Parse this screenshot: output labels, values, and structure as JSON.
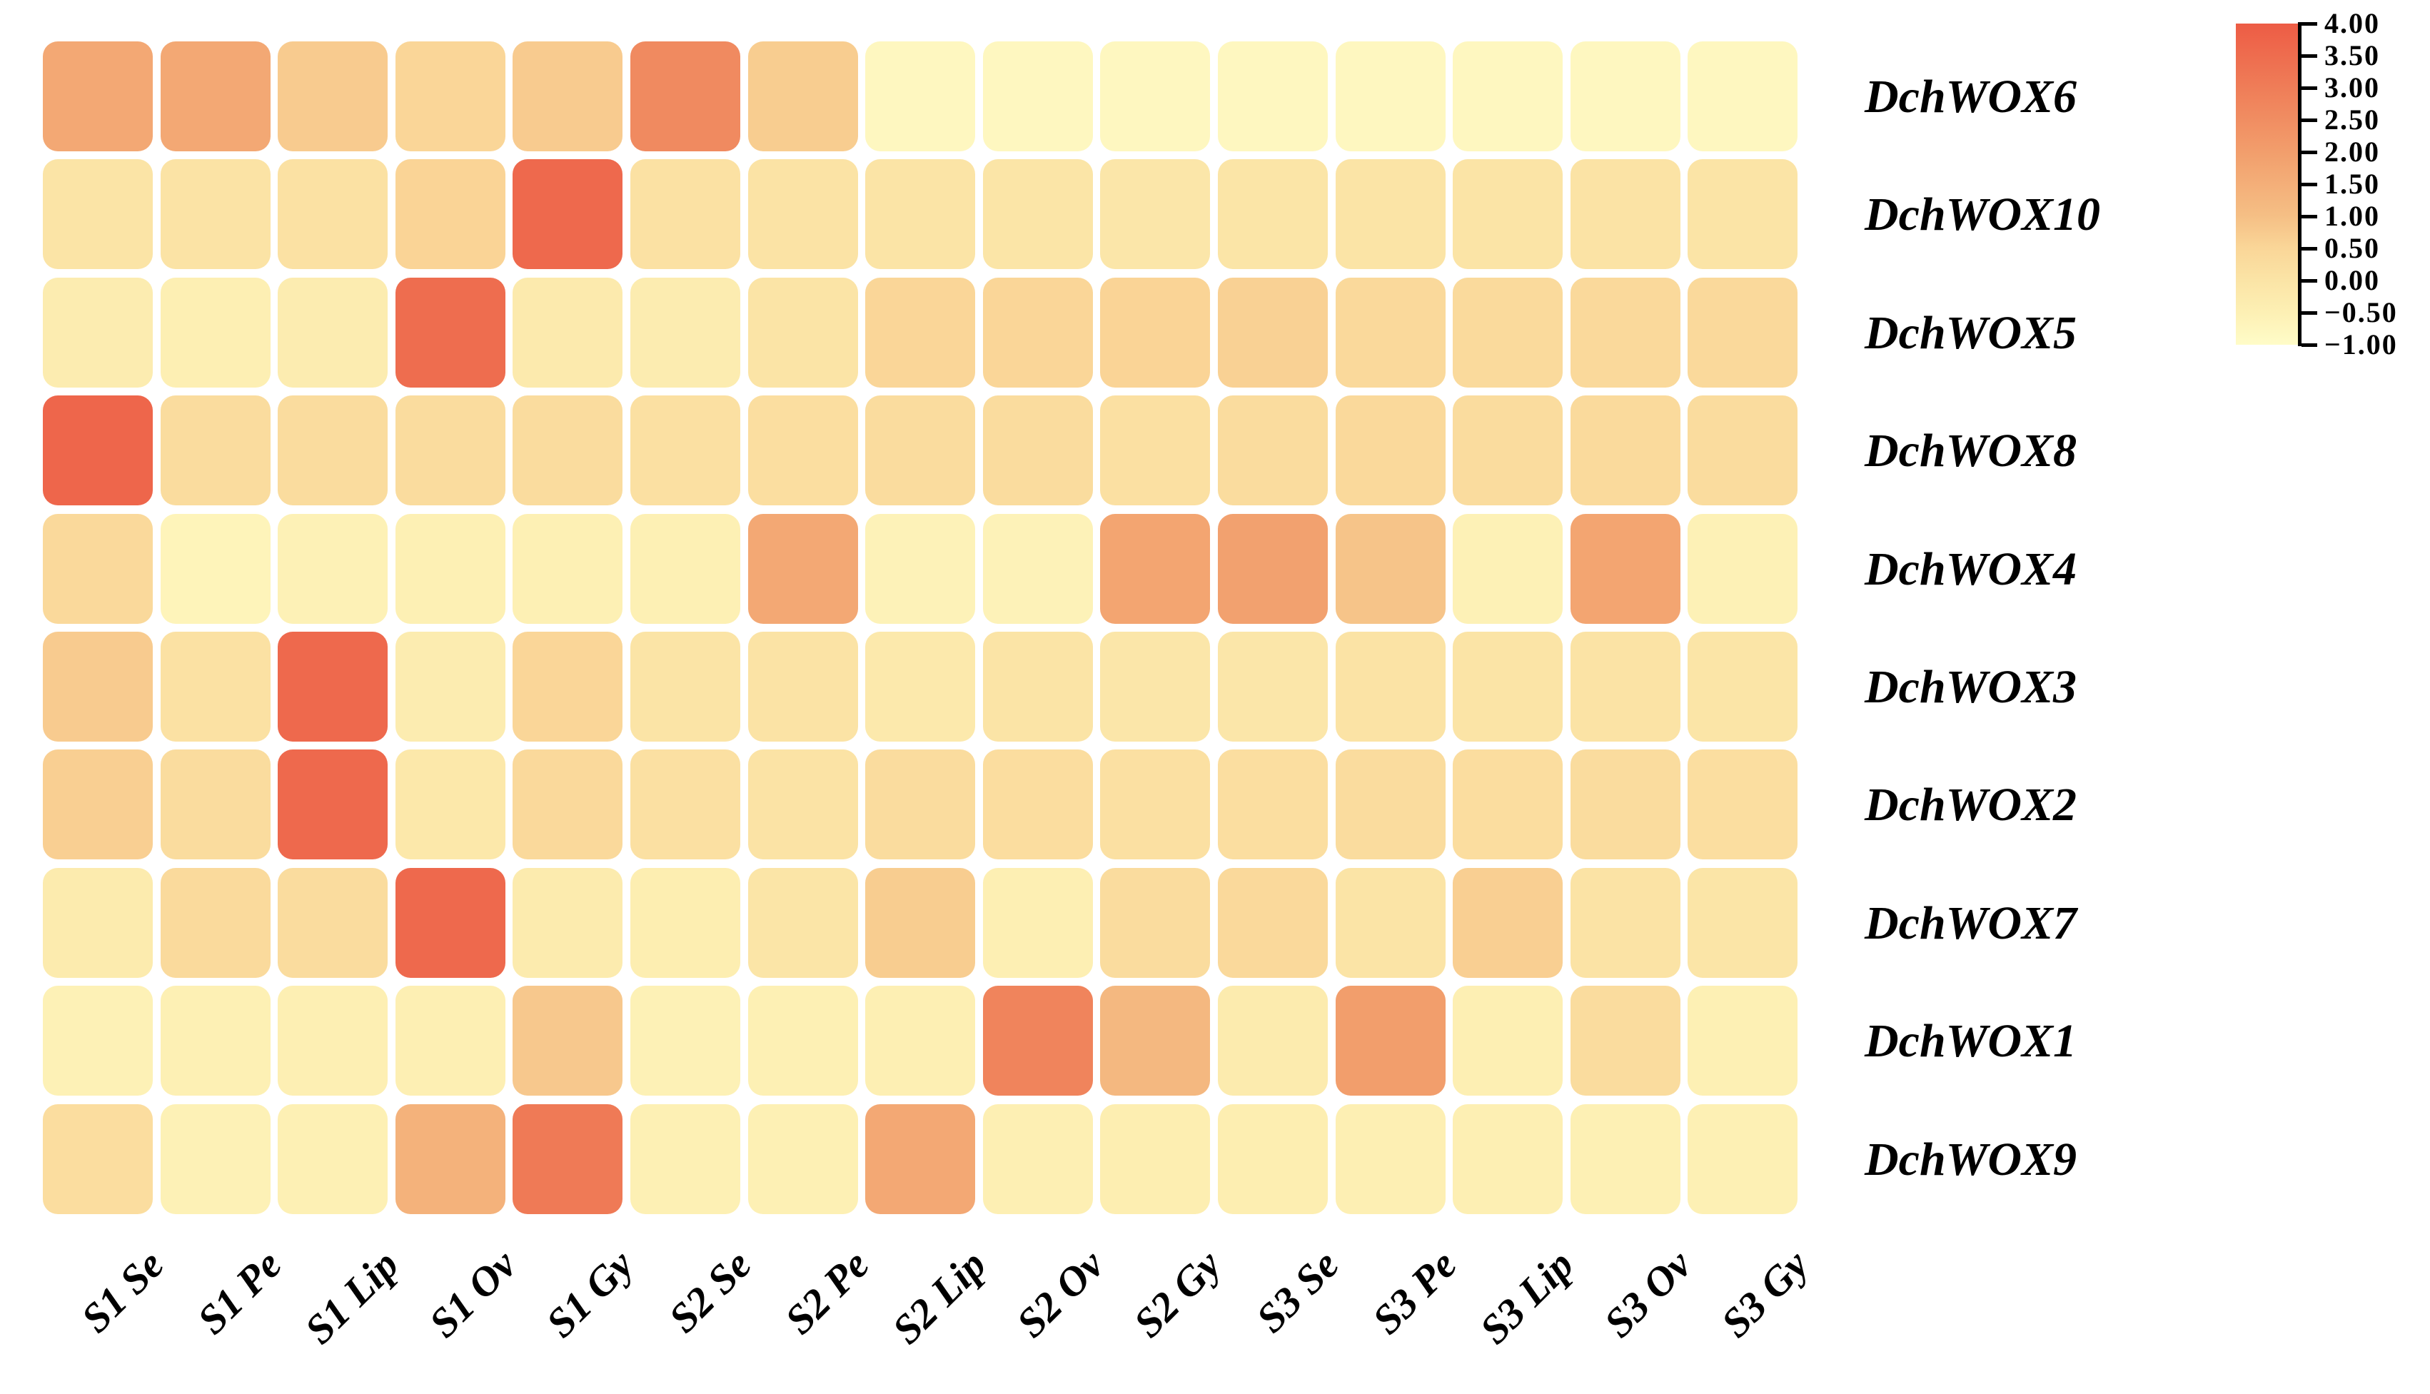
{
  "chart_data": {
    "type": "heatmap",
    "title": "",
    "rows": [
      "DchWOX6",
      "DchWOX10",
      "DchWOX5",
      "DchWOX8",
      "DchWOX4",
      "DchWOX3",
      "DchWOX2",
      "DchWOX7",
      "DchWOX1",
      "DchWOX9"
    ],
    "columns": [
      "S1 Se",
      "S1 Pe",
      "S1 Lip",
      "S1 Ov",
      "S1 Gy",
      "S2 Se",
      "S2 Pe",
      "S2 Lip",
      "S2 Ov",
      "S2 Gy",
      "S3 Se",
      "S3 Pe",
      "S3 Lip",
      "S3 Ov",
      "S3 Gy"
    ],
    "values": [
      [
        1.7,
        1.7,
        0.75,
        0.5,
        0.75,
        2.6,
        0.7,
        -0.8,
        -0.8,
        -0.8,
        -0.8,
        -0.8,
        -0.8,
        -0.8,
        -0.8
      ],
      [
        0.0,
        0.05,
        0.1,
        0.55,
        3.6,
        0.1,
        0.05,
        0.0,
        -0.05,
        -0.1,
        -0.05,
        0.0,
        0.0,
        0.05,
        0.0
      ],
      [
        -0.35,
        -0.45,
        -0.35,
        3.5,
        -0.25,
        -0.35,
        0.0,
        0.5,
        0.5,
        0.55,
        0.6,
        0.4,
        0.35,
        0.4,
        0.4
      ],
      [
        3.7,
        0.3,
        0.3,
        0.3,
        0.3,
        0.15,
        0.2,
        0.3,
        0.3,
        0.15,
        0.3,
        0.4,
        0.3,
        0.35,
        0.3
      ],
      [
        0.4,
        -0.65,
        -0.55,
        -0.5,
        -0.5,
        -0.5,
        1.7,
        -0.6,
        -0.6,
        1.8,
        1.9,
        0.9,
        -0.55,
        1.8,
        -0.55
      ],
      [
        0.75,
        0.1,
        3.6,
        -0.35,
        0.5,
        0.0,
        0.05,
        -0.2,
        0.0,
        -0.1,
        -0.1,
        0.05,
        0.0,
        0.05,
        -0.05
      ],
      [
        0.65,
        0.3,
        3.6,
        -0.15,
        0.4,
        0.15,
        0.05,
        0.3,
        0.25,
        0.15,
        0.2,
        0.3,
        0.25,
        0.3,
        0.2
      ],
      [
        -0.3,
        0.35,
        0.3,
        3.6,
        -0.3,
        -0.4,
        -0.05,
        0.7,
        -0.45,
        0.3,
        0.4,
        0.0,
        0.65,
        0.05,
        -0.05
      ],
      [
        -0.55,
        -0.5,
        -0.45,
        -0.45,
        0.8,
        -0.55,
        -0.5,
        -0.45,
        2.8,
        1.2,
        -0.3,
        2.0,
        -0.45,
        0.3,
        -0.5
      ],
      [
        0.25,
        -0.55,
        -0.5,
        1.4,
        3.1,
        -0.5,
        -0.5,
        1.7,
        -0.45,
        -0.4,
        -0.4,
        -0.45,
        -0.45,
        -0.5,
        -0.5
      ]
    ],
    "value_range": [
      -1.0,
      4.0
    ],
    "legend_position": "top-right",
    "grid": false,
    "colorbar": {
      "tick_labels": [
        "4.00",
        "3.50",
        "3.00",
        "2.50",
        "2.00",
        "1.50",
        "1.00",
        "0.50",
        "0.00",
        "−0.50",
        "−1.00"
      ],
      "tick_values": [
        4.0,
        3.5,
        3.0,
        2.5,
        2.0,
        1.5,
        1.0,
        0.5,
        0.0,
        -0.5,
        -1.0
      ],
      "gradient_stops": [
        {
          "value": 4.0,
          "color": "#ed5c45"
        },
        {
          "value": 3.0,
          "color": "#ef7d58"
        },
        {
          "value": 2.0,
          "color": "#f29e6c"
        },
        {
          "value": 1.0,
          "color": "#f5bf85"
        },
        {
          "value": 0.5,
          "color": "#fad698"
        },
        {
          "value": 0.0,
          "color": "#fbe4a6"
        },
        {
          "value": -0.5,
          "color": "#fdf0b4"
        },
        {
          "value": -1.0,
          "color": "#fffcc8"
        }
      ]
    },
    "colors": {
      "background": "#ffffff",
      "cell_gap": "#ffffff",
      "label_text": "#000000",
      "max_color": "#ed5c45",
      "min_color": "#fffcc8"
    }
  }
}
